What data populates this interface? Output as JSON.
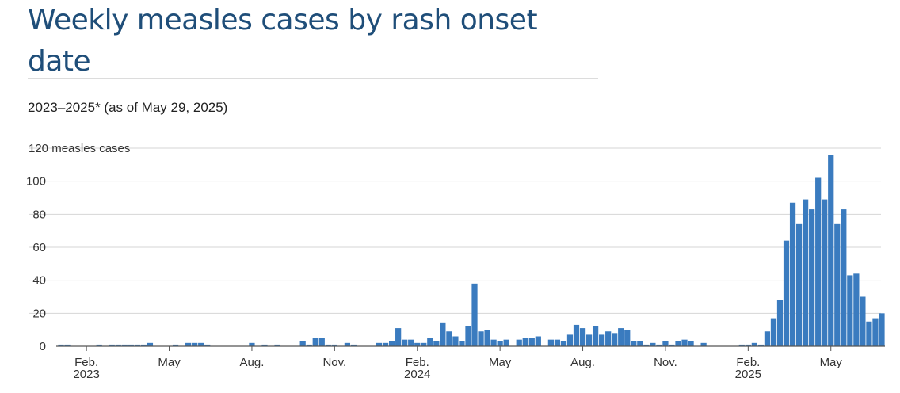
{
  "title": "Weekly measles cases by rash onset date",
  "subtitle": "2023–2025* (as of May 29, 2025)",
  "chart_data": {
    "type": "bar",
    "color": "#3a7bbf",
    "ylabel_inline": "measles cases",
    "ylim": [
      0,
      120
    ],
    "yticks": [
      0,
      20,
      40,
      60,
      80,
      100,
      120
    ],
    "grid": true,
    "xticks": [
      {
        "label": "Feb.",
        "sub": "2023",
        "index": 4
      },
      {
        "label": "May",
        "sub": "",
        "index": 17
      },
      {
        "label": "Aug.",
        "sub": "",
        "index": 30
      },
      {
        "label": "Nov.",
        "sub": "",
        "index": 43
      },
      {
        "label": "Feb.",
        "sub": "2024",
        "index": 56
      },
      {
        "label": "May",
        "sub": "",
        "index": 69
      },
      {
        "label": "Aug.",
        "sub": "",
        "index": 82
      },
      {
        "label": "Nov.",
        "sub": "",
        "index": 95
      },
      {
        "label": "Feb.",
        "sub": "2025",
        "index": 108
      },
      {
        "label": "May",
        "sub": "",
        "index": 121
      }
    ],
    "values": [
      1,
      1,
      0,
      0,
      0,
      0,
      1,
      0,
      1,
      1,
      1,
      1,
      1,
      1,
      2,
      0,
      0,
      0,
      1,
      0,
      2,
      2,
      2,
      1,
      0,
      0,
      0,
      0,
      0,
      0,
      2,
      0,
      1,
      0,
      1,
      0,
      0,
      0,
      3,
      1,
      5,
      5,
      1,
      1,
      0,
      2,
      1,
      0,
      0,
      0,
      2,
      2,
      3,
      11,
      4,
      4,
      2,
      2,
      5,
      3,
      14,
      9,
      6,
      3,
      12,
      38,
      9,
      10,
      4,
      3,
      4,
      0,
      4,
      5,
      5,
      6,
      0,
      4,
      4,
      3,
      7,
      13,
      11,
      7,
      12,
      7,
      9,
      8,
      11,
      10,
      3,
      3,
      1,
      2,
      1,
      3,
      1,
      3,
      4,
      3,
      0,
      2,
      0,
      0,
      0,
      0,
      0,
      1,
      1,
      2,
      1,
      9,
      17,
      28,
      64,
      87,
      74,
      89,
      83,
      102,
      89,
      116,
      74,
      83,
      43,
      44,
      30,
      15,
      17,
      20
    ]
  }
}
